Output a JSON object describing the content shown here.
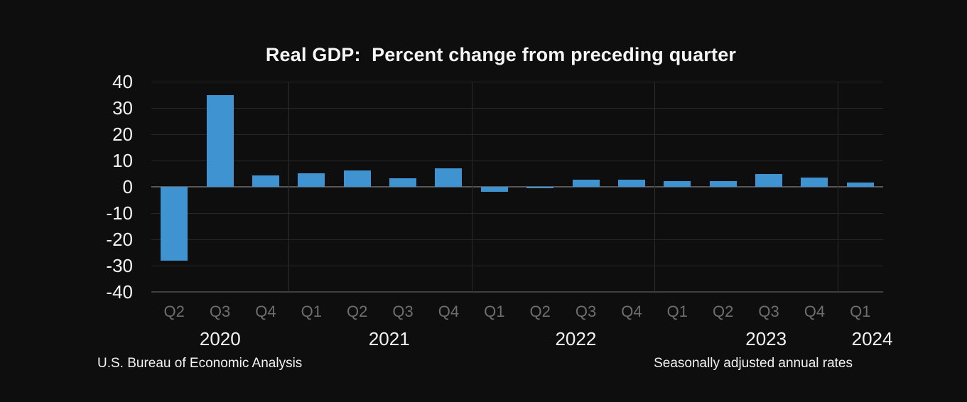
{
  "chart_data": {
    "type": "bar",
    "title": "Real GDP:  Percent change from preceding quarter",
    "categories": [
      "Q2",
      "Q3",
      "Q4",
      "Q1",
      "Q2",
      "Q3",
      "Q4",
      "Q1",
      "Q2",
      "Q3",
      "Q4",
      "Q1",
      "Q2",
      "Q3",
      "Q4",
      "Q1"
    ],
    "values": [
      -28.0,
      34.8,
      4.2,
      5.2,
      6.2,
      3.3,
      7.0,
      -2.0,
      -0.6,
      2.7,
      2.6,
      2.2,
      2.1,
      4.9,
      3.4,
      1.6
    ],
    "year_groups": [
      {
        "label": "2020",
        "quarter_count": 3
      },
      {
        "label": "2021",
        "quarter_count": 4
      },
      {
        "label": "2022",
        "quarter_count": 4
      },
      {
        "label": "2023",
        "quarter_count": 4
      },
      {
        "label": "2024",
        "quarter_count": 1
      }
    ],
    "yticks": [
      40,
      30,
      20,
      10,
      0,
      -10,
      -20,
      -30,
      -40
    ],
    "ylim": [
      -40,
      40
    ],
    "xlabel": "",
    "ylabel": "",
    "grid": true,
    "legend": "none",
    "bar_color": "#3f93d0",
    "background_color": "#0e0e0e",
    "year_separator_after_index": [
      2,
      6,
      10,
      14
    ],
    "year_label_x_pct": [
      9.4,
      32.5,
      58.0,
      84.0,
      98.5
    ],
    "source_note": "U.S. Bureau of Economic Analysis",
    "footnote": "Seasonally adjusted annual rates"
  }
}
